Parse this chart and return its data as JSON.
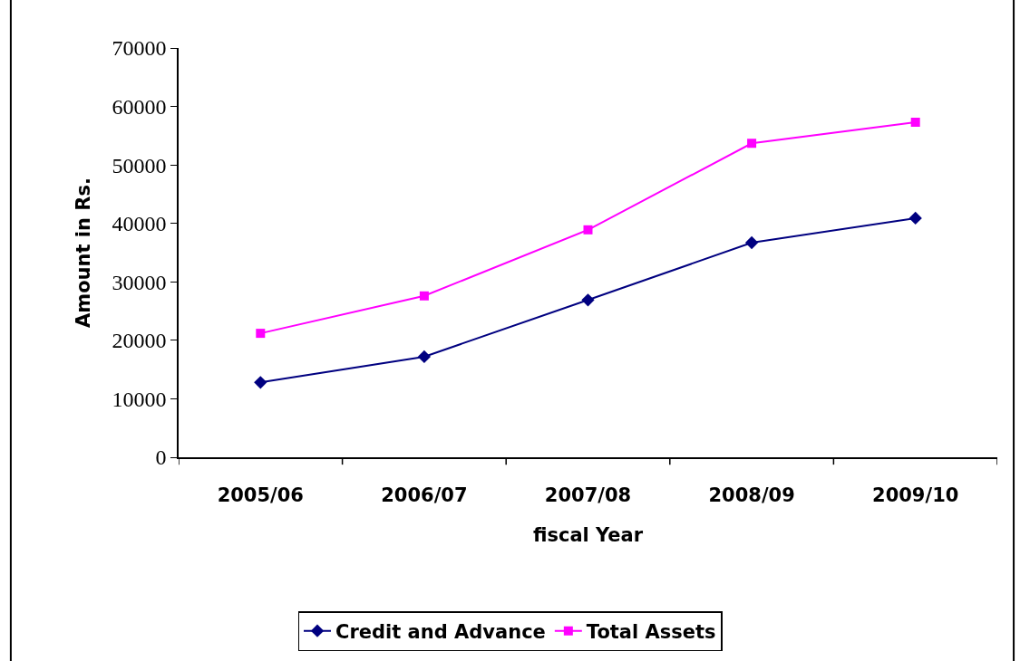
{
  "chart_data": {
    "type": "line",
    "xlabel": "fiscal Year",
    "ylabel": "Amount in Rs.",
    "categories": [
      "2005/06",
      "2006/07",
      "2007/08",
      "2008/09",
      "2009/10"
    ],
    "series": [
      {
        "name": "Credit and Advance",
        "color": "#000080",
        "marker": "diamond",
        "values": [
          12800,
          17200,
          26900,
          36700,
          40900
        ]
      },
      {
        "name": "Total Assets",
        "color": "#ff00ff",
        "marker": "square",
        "values": [
          21200,
          27600,
          38900,
          53700,
          57300
        ]
      }
    ],
    "ylim": [
      0,
      70000
    ],
    "yticks": [
      0,
      10000,
      20000,
      30000,
      40000,
      50000,
      60000,
      70000
    ],
    "legend": "bottom",
    "line_style": "solid"
  }
}
